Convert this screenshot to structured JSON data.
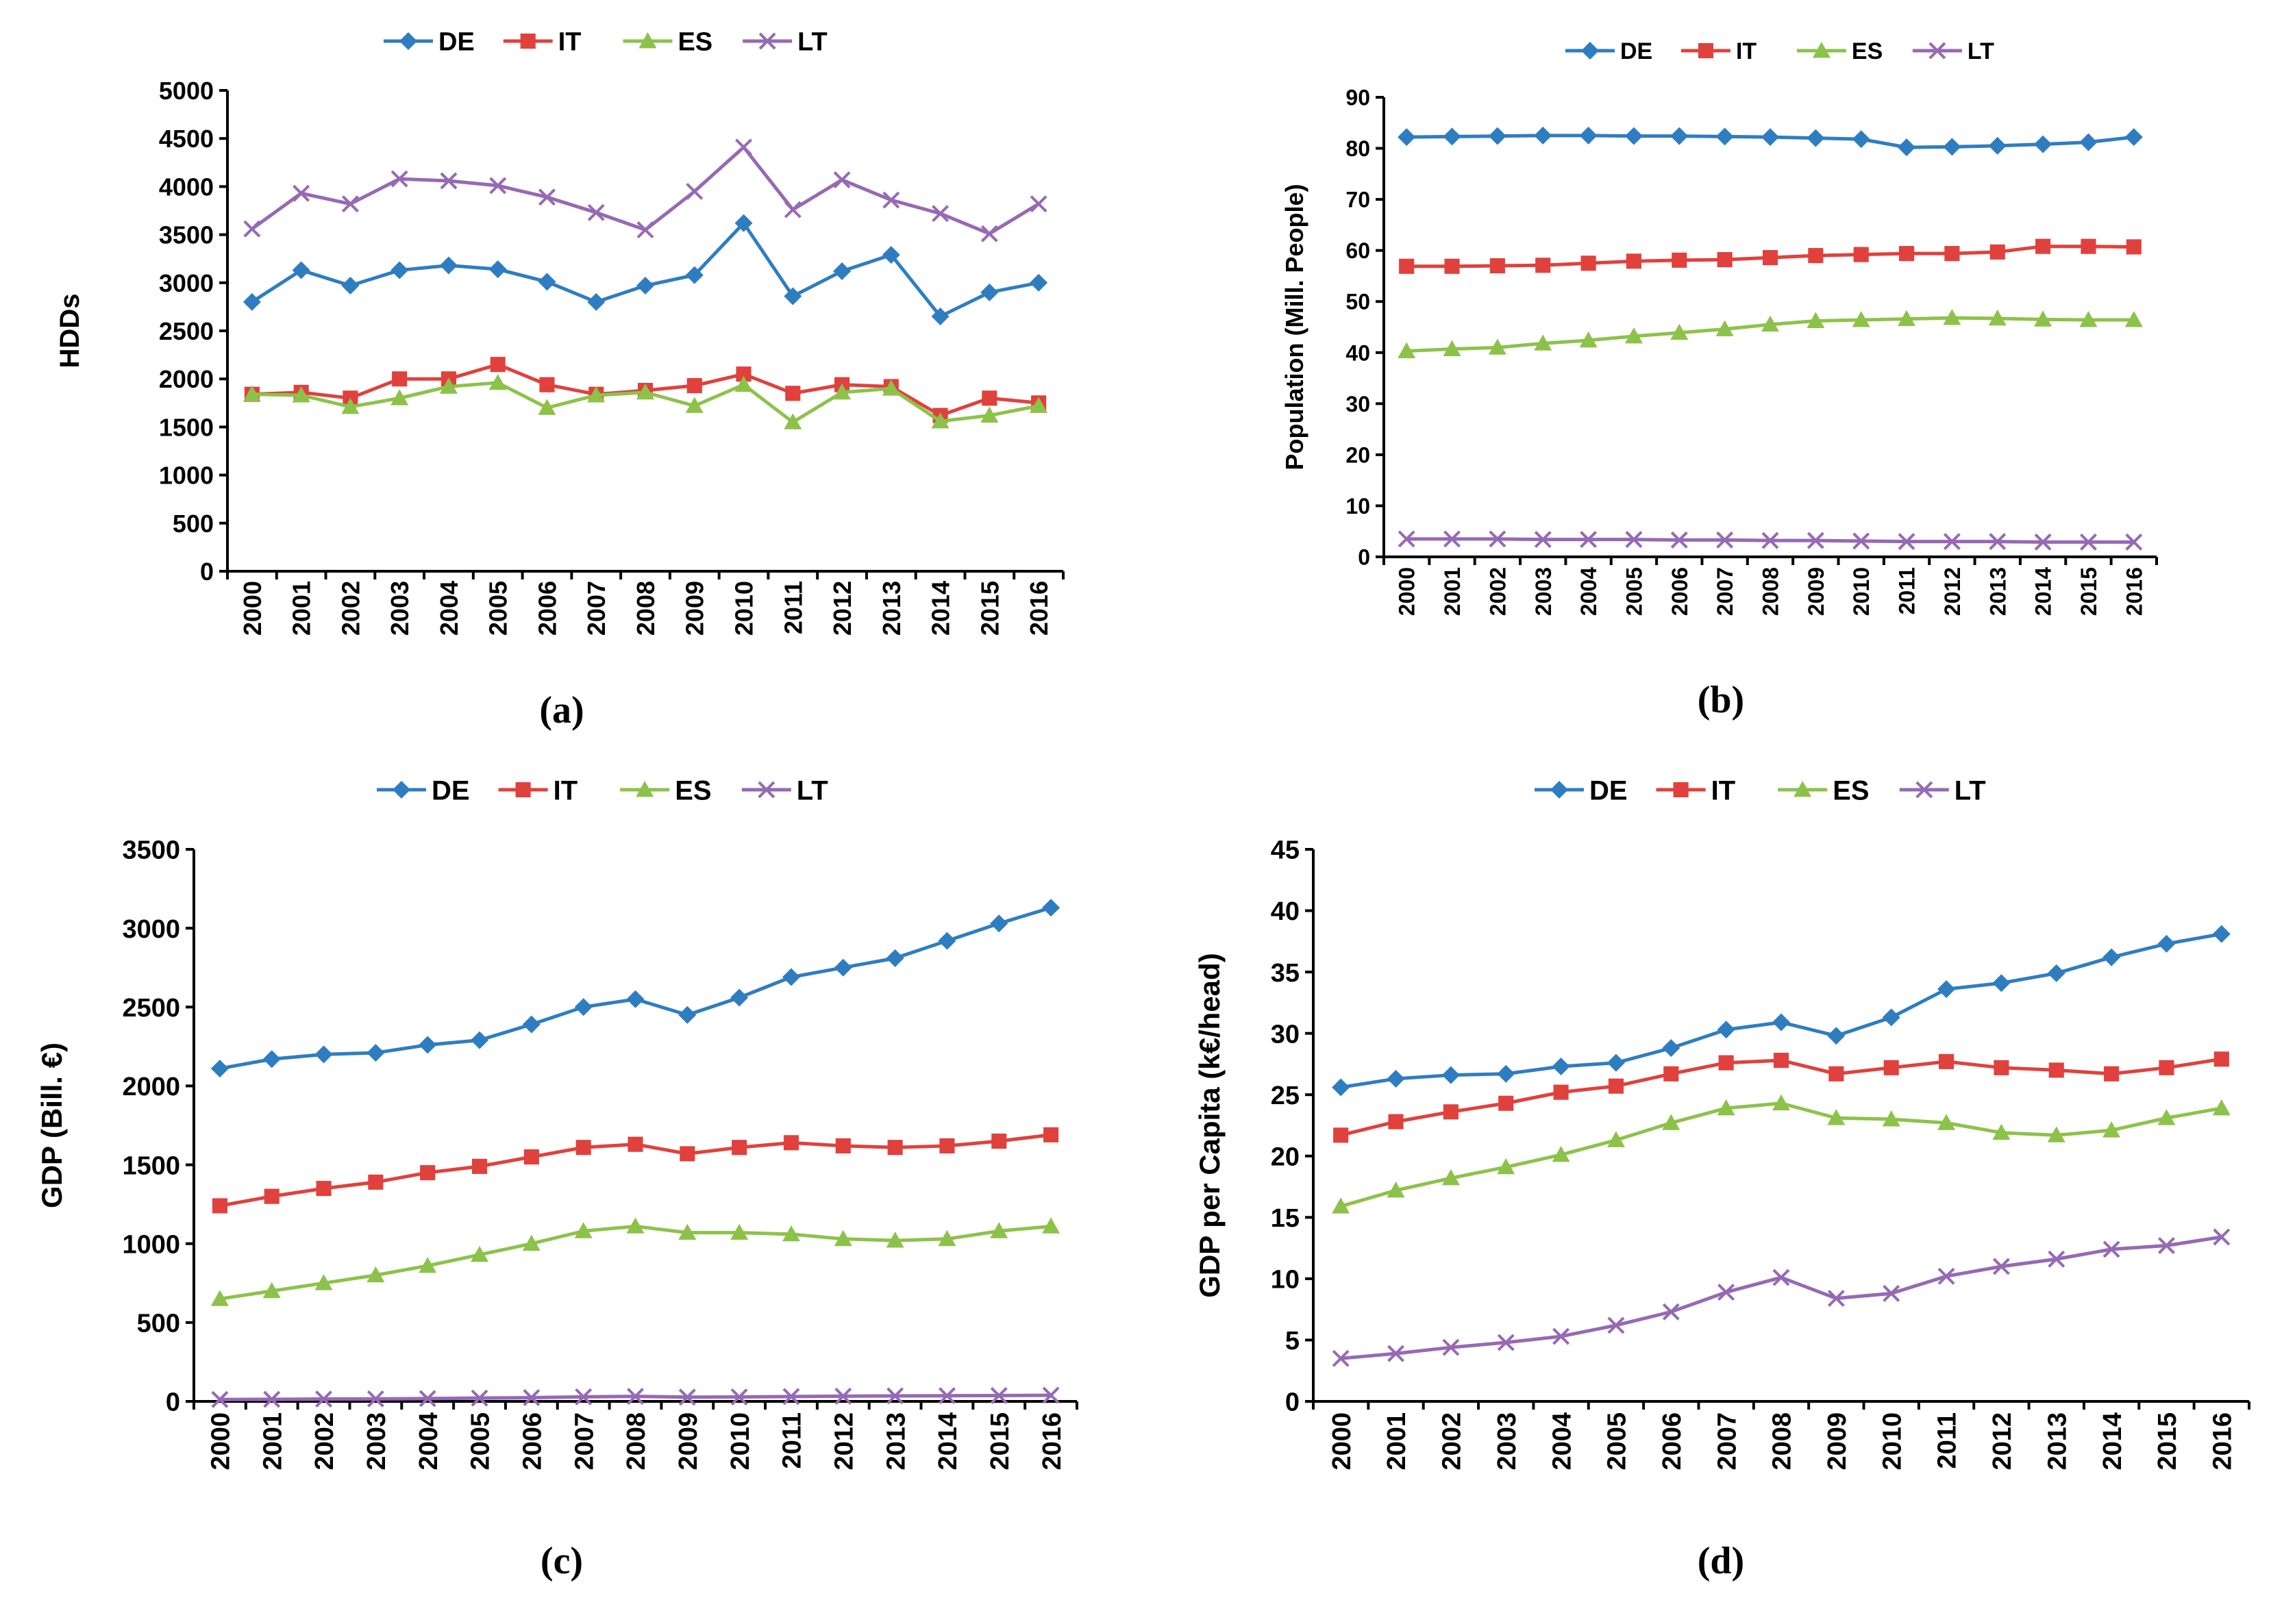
{
  "series_styles": [
    {
      "name": "DE",
      "color": "#2E7DC1",
      "marker": "diamond"
    },
    {
      "name": "IT",
      "color": "#E0413D",
      "marker": "square"
    },
    {
      "name": "ES",
      "color": "#8DC24A",
      "marker": "triangle"
    },
    {
      "name": "LT",
      "color": "#9669B4",
      "marker": "x"
    }
  ],
  "chart_data": [
    {
      "id": "a",
      "type": "line",
      "caption": "(a)",
      "title": "",
      "xlabel": "",
      "ylabel": "HDDs",
      "categories": [
        "2000",
        "2001",
        "2002",
        "2003",
        "2004",
        "2005",
        "2006",
        "2007",
        "2008",
        "2009",
        "2010",
        "2011",
        "2012",
        "2013",
        "2014",
        "2015",
        "2016"
      ],
      "ylim": [
        0,
        5000
      ],
      "yticks": [
        0,
        500,
        1000,
        1500,
        2000,
        2500,
        3000,
        3500,
        4000,
        4500,
        5000
      ],
      "legend": [
        "DE",
        "IT",
        "ES",
        "LT"
      ],
      "series": [
        {
          "name": "DE",
          "values": [
            2800,
            3130,
            2970,
            3130,
            3180,
            3140,
            3010,
            2800,
            2970,
            3080,
            3620,
            2860,
            3120,
            3290,
            2650,
            2900,
            3000
          ]
        },
        {
          "name": "IT",
          "values": [
            1840,
            1860,
            1800,
            2000,
            2000,
            2150,
            1940,
            1840,
            1880,
            1930,
            2050,
            1850,
            1940,
            1920,
            1620,
            1800,
            1750
          ]
        },
        {
          "name": "ES",
          "values": [
            1840,
            1830,
            1710,
            1800,
            1920,
            1960,
            1700,
            1830,
            1860,
            1720,
            1940,
            1550,
            1860,
            1900,
            1560,
            1620,
            1720
          ]
        },
        {
          "name": "LT",
          "values": [
            3560,
            3930,
            3820,
            4080,
            4060,
            4010,
            3890,
            3730,
            3550,
            3950,
            4410,
            3760,
            4070,
            3860,
            3720,
            3510,
            3820
          ]
        }
      ]
    },
    {
      "id": "b",
      "type": "line",
      "caption": "(b)",
      "title": "",
      "xlabel": "",
      "ylabel": "Population (Mill. People)",
      "categories": [
        "2000",
        "2001",
        "2002",
        "2003",
        "2004",
        "2005",
        "2006",
        "2007",
        "2008",
        "2009",
        "2010",
        "2011",
        "2012",
        "2013",
        "2014",
        "2015",
        "2016"
      ],
      "ylim": [
        0,
        90
      ],
      "yticks": [
        0,
        10,
        20,
        30,
        40,
        50,
        60,
        70,
        80,
        90
      ],
      "legend": [
        "DE",
        "IT",
        "ES",
        "LT"
      ],
      "series": [
        {
          "name": "DE",
          "values": [
            82.2,
            82.3,
            82.4,
            82.5,
            82.5,
            82.4,
            82.4,
            82.3,
            82.2,
            82.0,
            81.8,
            80.2,
            80.3,
            80.5,
            80.8,
            81.2,
            82.2
          ]
        },
        {
          "name": "IT",
          "values": [
            56.9,
            56.9,
            57.0,
            57.1,
            57.5,
            57.9,
            58.1,
            58.2,
            58.6,
            59.0,
            59.2,
            59.4,
            59.4,
            59.7,
            60.8,
            60.8,
            60.7
          ]
        },
        {
          "name": "ES",
          "values": [
            40.3,
            40.7,
            41.0,
            41.8,
            42.4,
            43.2,
            43.9,
            44.6,
            45.5,
            46.2,
            46.4,
            46.6,
            46.8,
            46.7,
            46.5,
            46.4,
            46.4
          ]
        },
        {
          "name": "LT",
          "values": [
            3.5,
            3.5,
            3.5,
            3.4,
            3.4,
            3.4,
            3.3,
            3.3,
            3.2,
            3.2,
            3.1,
            3.0,
            3.0,
            3.0,
            2.9,
            2.9,
            2.9
          ]
        }
      ]
    },
    {
      "id": "c",
      "type": "line",
      "caption": "(c)",
      "title": "",
      "xlabel": "",
      "ylabel": "GDP (Bill. €)",
      "categories": [
        "2000",
        "2001",
        "2002",
        "2003",
        "2004",
        "2005",
        "2006",
        "2007",
        "2008",
        "2009",
        "2010",
        "2011",
        "2012",
        "2013",
        "2014",
        "2015",
        "2016"
      ],
      "ylim": [
        0,
        3500
      ],
      "yticks": [
        0,
        500,
        1000,
        1500,
        2000,
        2500,
        3000,
        3500
      ],
      "legend": [
        "DE",
        "IT",
        "ES",
        "LT"
      ],
      "series": [
        {
          "name": "DE",
          "values": [
            2110,
            2170,
            2200,
            2210,
            2260,
            2290,
            2390,
            2500,
            2550,
            2450,
            2560,
            2690,
            2750,
            2810,
            2920,
            3030,
            3130
          ]
        },
        {
          "name": "IT",
          "values": [
            1240,
            1300,
            1350,
            1390,
            1450,
            1490,
            1550,
            1610,
            1630,
            1570,
            1610,
            1640,
            1620,
            1610,
            1620,
            1650,
            1690
          ]
        },
        {
          "name": "ES",
          "values": [
            650,
            700,
            750,
            800,
            860,
            930,
            1000,
            1080,
            1110,
            1070,
            1070,
            1060,
            1030,
            1020,
            1030,
            1080,
            1110
          ]
        },
        {
          "name": "LT",
          "values": [
            12,
            13,
            15,
            16,
            18,
            21,
            24,
            29,
            32,
            27,
            28,
            31,
            33,
            35,
            36,
            37,
            39
          ]
        }
      ]
    },
    {
      "id": "d",
      "type": "line",
      "caption": "(d)",
      "title": "",
      "xlabel": "",
      "ylabel": "GDP per Capita (k€/head)",
      "categories": [
        "2000",
        "2001",
        "2002",
        "2003",
        "2004",
        "2005",
        "2006",
        "2007",
        "2008",
        "2009",
        "2010",
        "2011",
        "2012",
        "2013",
        "2014",
        "2015",
        "2016"
      ],
      "ylim": [
        0,
        45
      ],
      "yticks": [
        0,
        5,
        10,
        15,
        20,
        25,
        30,
        35,
        40,
        45
      ],
      "legend": [
        "DE",
        "IT",
        "ES",
        "LT"
      ],
      "series": [
        {
          "name": "DE",
          "values": [
            25.6,
            26.3,
            26.6,
            26.7,
            27.3,
            27.6,
            28.8,
            30.3,
            30.9,
            29.8,
            31.3,
            33.6,
            34.1,
            34.9,
            36.2,
            37.3,
            38.1
          ]
        },
        {
          "name": "IT",
          "values": [
            21.7,
            22.8,
            23.6,
            24.3,
            25.2,
            25.7,
            26.7,
            27.6,
            27.8,
            26.7,
            27.2,
            27.7,
            27.2,
            27.0,
            26.7,
            27.2,
            27.9
          ]
        },
        {
          "name": "ES",
          "values": [
            15.9,
            17.2,
            18.2,
            19.1,
            20.1,
            21.3,
            22.7,
            23.9,
            24.3,
            23.1,
            23.0,
            22.7,
            21.9,
            21.7,
            22.1,
            23.1,
            23.9
          ]
        },
        {
          "name": "LT",
          "values": [
            3.5,
            3.9,
            4.4,
            4.8,
            5.3,
            6.2,
            7.3,
            8.9,
            10.1,
            8.4,
            8.8,
            10.2,
            11.0,
            11.6,
            12.4,
            12.7,
            13.4
          ]
        }
      ]
    }
  ]
}
